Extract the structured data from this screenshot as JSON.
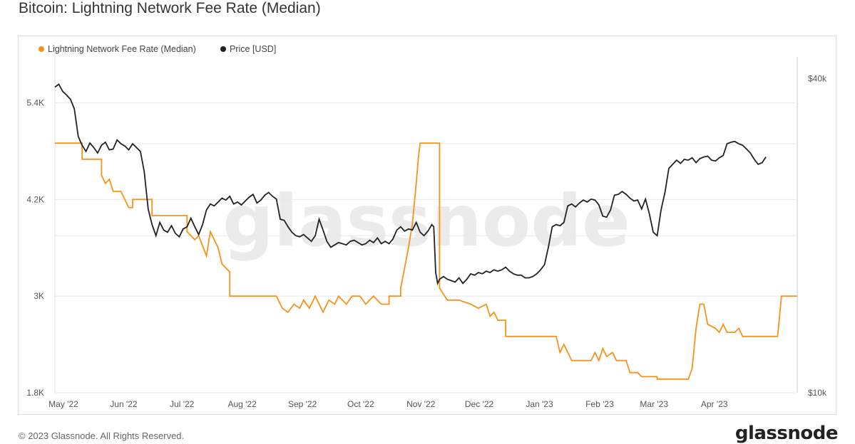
{
  "title": "Bitcoin: Lightning Network Fee Rate (Median)",
  "footer": "© 2023 Glassnode. All Rights Reserved.",
  "brand": "glassnode",
  "watermark": "glassnode",
  "colors": {
    "fee": "#f7931a",
    "price": "#222222",
    "grid": "#e8e8e8"
  },
  "chart_data": {
    "type": "line",
    "title": "Bitcoin: Lightning Network Fee Rate (Median)",
    "legend": [
      "Lightning Network Fee Rate (Median)",
      "Price [USD]"
    ],
    "legend_position": "top-left",
    "grid": true,
    "x_ticks": [
      "May '22",
      "Jun '22",
      "Jul '22",
      "Aug '22",
      "Sep '22",
      "Oct '22",
      "Nov '22",
      "Dec '22",
      "Jan '23",
      "Feb '23",
      "Mar '23",
      "Apr '23"
    ],
    "x_tick_days": [
      0,
      31,
      61,
      92,
      123,
      153,
      184,
      214,
      245,
      276,
      304,
      335
    ],
    "y_left": {
      "ticks": [
        "1.8K",
        "3K",
        "4.2K",
        "5.4K"
      ],
      "tick_values": [
        1800,
        3000,
        4200,
        5400
      ],
      "ylim": [
        1800,
        5970
      ]
    },
    "y_right": {
      "ticks": [
        "$10k",
        "$40k"
      ],
      "tick_values": [
        10000,
        40000
      ],
      "ylim": [
        10000,
        44000
      ],
      "scale": "log"
    },
    "series": [
      {
        "name": "Lightning Network Fee Rate (Median)",
        "axis": "left",
        "points": [
          [
            0,
            4900
          ],
          [
            14,
            4900
          ],
          [
            14,
            4700
          ],
          [
            24,
            4700
          ],
          [
            24,
            4500
          ],
          [
            26,
            4400
          ],
          [
            28,
            4450
          ],
          [
            30,
            4300
          ],
          [
            34,
            4300
          ],
          [
            36,
            4200
          ],
          [
            38,
            4100
          ],
          [
            40,
            4100
          ],
          [
            40,
            4200
          ],
          [
            50,
            4200
          ],
          [
            50,
            4000
          ],
          [
            68,
            4000
          ],
          [
            68,
            3800
          ],
          [
            72,
            3700
          ],
          [
            74,
            3750
          ],
          [
            78,
            3500
          ],
          [
            80,
            3800
          ],
          [
            84,
            3600
          ],
          [
            86,
            3400
          ],
          [
            90,
            3300
          ],
          [
            90,
            3000
          ],
          [
            114,
            3000
          ],
          [
            117,
            2850
          ],
          [
            120,
            2800
          ],
          [
            123,
            2900
          ],
          [
            126,
            2850
          ],
          [
            128,
            2950
          ],
          [
            131,
            2850
          ],
          [
            134,
            3000
          ],
          [
            138,
            2800
          ],
          [
            141,
            2950
          ],
          [
            144,
            2900
          ],
          [
            146,
            3000
          ],
          [
            150,
            2900
          ],
          [
            153,
            3000
          ],
          [
            157,
            3000
          ],
          [
            160,
            2900
          ],
          [
            164,
            3000
          ],
          [
            168,
            2900
          ],
          [
            172,
            2900
          ],
          [
            172,
            3000
          ],
          [
            178,
            3000
          ],
          [
            178,
            3100
          ],
          [
            182,
            3600
          ],
          [
            184,
            3900
          ],
          [
            186,
            4400
          ],
          [
            187,
            4700
          ],
          [
            188,
            4900
          ],
          [
            198,
            4900
          ],
          [
            198,
            3100
          ],
          [
            202,
            2950
          ],
          [
            208,
            2950
          ],
          [
            214,
            2900
          ],
          [
            218,
            2850
          ],
          [
            222,
            2900
          ],
          [
            224,
            2750
          ],
          [
            226,
            2800
          ],
          [
            228,
            2700
          ],
          [
            232,
            2700
          ],
          [
            232,
            2500
          ],
          [
            258,
            2500
          ],
          [
            260,
            2300
          ],
          [
            262,
            2400
          ],
          [
            266,
            2200
          ],
          [
            276,
            2200
          ],
          [
            278,
            2300
          ],
          [
            280,
            2200
          ],
          [
            282,
            2350
          ],
          [
            284,
            2250
          ],
          [
            287,
            2300
          ],
          [
            289,
            2200
          ],
          [
            294,
            2200
          ],
          [
            296,
            2050
          ],
          [
            300,
            2050
          ],
          [
            302,
            2000
          ],
          [
            310,
            2000
          ],
          [
            310,
            1970
          ],
          [
            326,
            1970
          ],
          [
            328,
            2100
          ],
          [
            330,
            2600
          ],
          [
            332,
            2900
          ],
          [
            334,
            2900
          ],
          [
            336,
            2650
          ],
          [
            340,
            2600
          ],
          [
            342,
            2550
          ],
          [
            344,
            2650
          ],
          [
            346,
            2550
          ],
          [
            350,
            2550
          ],
          [
            352,
            2600
          ],
          [
            354,
            2500
          ],
          [
            372,
            2500
          ],
          [
            374,
            3000
          ],
          [
            382,
            3000
          ]
        ]
      },
      {
        "name": "Price [USD]",
        "axis": "right",
        "points": [
          [
            0,
            38500
          ],
          [
            2,
            39000
          ],
          [
            4,
            37800
          ],
          [
            6,
            37200
          ],
          [
            8,
            36500
          ],
          [
            10,
            35000
          ],
          [
            12,
            31000
          ],
          [
            14,
            29800
          ],
          [
            16,
            29000
          ],
          [
            18,
            30100
          ],
          [
            20,
            29500
          ],
          [
            22,
            28800
          ],
          [
            24,
            29800
          ],
          [
            26,
            30200
          ],
          [
            28,
            29200
          ],
          [
            30,
            29300
          ],
          [
            32,
            30500
          ],
          [
            34,
            30000
          ],
          [
            36,
            29700
          ],
          [
            38,
            29200
          ],
          [
            40,
            30000
          ],
          [
            42,
            29500
          ],
          [
            44,
            29000
          ],
          [
            46,
            26500
          ],
          [
            48,
            22500
          ],
          [
            50,
            21000
          ],
          [
            52,
            20000
          ],
          [
            54,
            21200
          ],
          [
            56,
            20500
          ],
          [
            58,
            20300
          ],
          [
            60,
            20900
          ],
          [
            62,
            20200
          ],
          [
            64,
            19900
          ],
          [
            66,
            20600
          ],
          [
            68,
            20800
          ],
          [
            70,
            21600
          ],
          [
            72,
            20800
          ],
          [
            74,
            20100
          ],
          [
            76,
            21000
          ],
          [
            78,
            22400
          ],
          [
            80,
            23000
          ],
          [
            82,
            22800
          ],
          [
            84,
            23200
          ],
          [
            86,
            23600
          ],
          [
            88,
            23400
          ],
          [
            90,
            23800
          ],
          [
            92,
            23000
          ],
          [
            94,
            23200
          ],
          [
            96,
            22900
          ],
          [
            98,
            23300
          ],
          [
            100,
            23700
          ],
          [
            102,
            24000
          ],
          [
            104,
            23100
          ],
          [
            106,
            23400
          ],
          [
            108,
            23900
          ],
          [
            110,
            24200
          ],
          [
            112,
            23800
          ],
          [
            114,
            23500
          ],
          [
            116,
            21500
          ],
          [
            118,
            21400
          ],
          [
            120,
            20800
          ],
          [
            122,
            20300
          ],
          [
            124,
            20000
          ],
          [
            126,
            19900
          ],
          [
            128,
            20100
          ],
          [
            130,
            19800
          ],
          [
            132,
            19500
          ],
          [
            134,
            20000
          ],
          [
            136,
            21500
          ],
          [
            138,
            20500
          ],
          [
            140,
            19500
          ],
          [
            142,
            19000
          ],
          [
            144,
            19200
          ],
          [
            146,
            19400
          ],
          [
            148,
            19300
          ],
          [
            150,
            19200
          ],
          [
            152,
            19500
          ],
          [
            154,
            19600
          ],
          [
            156,
            19400
          ],
          [
            158,
            19200
          ],
          [
            160,
            19300
          ],
          [
            162,
            19600
          ],
          [
            164,
            19400
          ],
          [
            166,
            19800
          ],
          [
            168,
            19300
          ],
          [
            170,
            19500
          ],
          [
            172,
            19300
          ],
          [
            174,
            19700
          ],
          [
            176,
            20500
          ],
          [
            178,
            20800
          ],
          [
            180,
            20400
          ],
          [
            182,
            20600
          ],
          [
            184,
            20500
          ],
          [
            186,
            21200
          ],
          [
            188,
            20300
          ],
          [
            190,
            20000
          ],
          [
            192,
            20400
          ],
          [
            194,
            21000
          ],
          [
            195,
            20800
          ],
          [
            196,
            17000
          ],
          [
            197,
            16200
          ],
          [
            198,
            16500
          ],
          [
            200,
            16700
          ],
          [
            202,
            16500
          ],
          [
            204,
            16400
          ],
          [
            206,
            16300
          ],
          [
            208,
            16600
          ],
          [
            210,
            16200
          ],
          [
            212,
            16500
          ],
          [
            214,
            16900
          ],
          [
            216,
            16800
          ],
          [
            218,
            17000
          ],
          [
            220,
            16900
          ],
          [
            222,
            17100
          ],
          [
            224,
            17000
          ],
          [
            226,
            17200
          ],
          [
            228,
            17100
          ],
          [
            230,
            17200
          ],
          [
            232,
            17400
          ],
          [
            234,
            17100
          ],
          [
            236,
            16900
          ],
          [
            238,
            16800
          ],
          [
            240,
            16800
          ],
          [
            242,
            16600
          ],
          [
            244,
            16600
          ],
          [
            246,
            16700
          ],
          [
            248,
            16900
          ],
          [
            250,
            17200
          ],
          [
            252,
            17600
          ],
          [
            254,
            19000
          ],
          [
            256,
            20800
          ],
          [
            258,
            21000
          ],
          [
            260,
            20900
          ],
          [
            262,
            21200
          ],
          [
            264,
            22800
          ],
          [
            266,
            23000
          ],
          [
            268,
            22700
          ],
          [
            270,
            23100
          ],
          [
            272,
            23400
          ],
          [
            274,
            23200
          ],
          [
            276,
            23500
          ],
          [
            278,
            23400
          ],
          [
            280,
            22900
          ],
          [
            282,
            21800
          ],
          [
            284,
            21700
          ],
          [
            286,
            22400
          ],
          [
            288,
            23900
          ],
          [
            290,
            24000
          ],
          [
            292,
            24300
          ],
          [
            294,
            24000
          ],
          [
            296,
            23600
          ],
          [
            298,
            23300
          ],
          [
            300,
            23400
          ],
          [
            302,
            22500
          ],
          [
            304,
            23500
          ],
          [
            306,
            22000
          ],
          [
            308,
            20300
          ],
          [
            310,
            20000
          ],
          [
            312,
            22400
          ],
          [
            314,
            24200
          ],
          [
            316,
            26900
          ],
          [
            318,
            27400
          ],
          [
            320,
            27900
          ],
          [
            322,
            27500
          ],
          [
            324,
            28000
          ],
          [
            326,
            27900
          ],
          [
            328,
            28200
          ],
          [
            330,
            27600
          ],
          [
            332,
            28100
          ],
          [
            334,
            28300
          ],
          [
            336,
            28400
          ],
          [
            338,
            27900
          ],
          [
            340,
            27800
          ],
          [
            342,
            28200
          ],
          [
            344,
            28500
          ],
          [
            346,
            30000
          ],
          [
            348,
            30200
          ],
          [
            350,
            30300
          ],
          [
            352,
            30000
          ],
          [
            354,
            29800
          ],
          [
            356,
            29300
          ],
          [
            358,
            28800
          ],
          [
            360,
            28000
          ],
          [
            362,
            27400
          ],
          [
            364,
            27600
          ],
          [
            366,
            28300
          ]
        ]
      }
    ]
  }
}
